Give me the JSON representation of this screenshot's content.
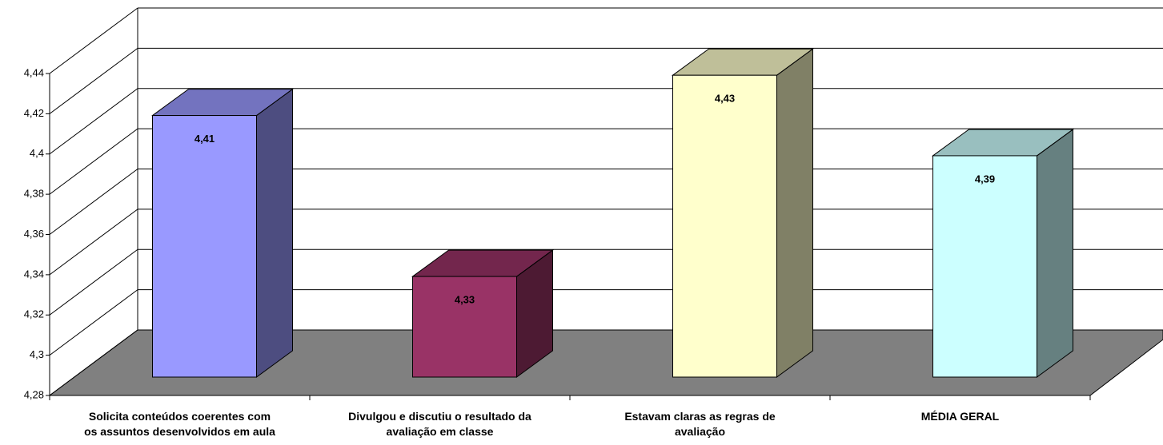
{
  "chart_data": {
    "type": "bar3d",
    "categories": [
      "Solicita conteúdos coerentes com\nos assuntos desenvolvidos em aula",
      "Divulgou e discutiu o resultado da\navaliação em classe",
      "Estavam claras as regras de\navaliação",
      "MÉDIA GERAL"
    ],
    "values": [
      4.41,
      4.33,
      4.43,
      4.39
    ],
    "value_labels": [
      "4,41",
      "4,33",
      "4,43",
      "4,39"
    ],
    "colors": [
      "#9999ff",
      "#993366",
      "#ffffcc",
      "#ccffff"
    ],
    "ylim": [
      4.28,
      4.44
    ],
    "yticks": [
      {
        "value": 4.28,
        "label": "4,28"
      },
      {
        "value": 4.3,
        "label": "4,3"
      },
      {
        "value": 4.32,
        "label": "4,32"
      },
      {
        "value": 4.34,
        "label": "4,34"
      },
      {
        "value": 4.36,
        "label": "4,36"
      },
      {
        "value": 4.38,
        "label": "4,38"
      },
      {
        "value": 4.4,
        "label": "4,4"
      },
      {
        "value": 4.42,
        "label": "4,42"
      },
      {
        "value": 4.44,
        "label": "4,44"
      }
    ],
    "grid": true
  }
}
